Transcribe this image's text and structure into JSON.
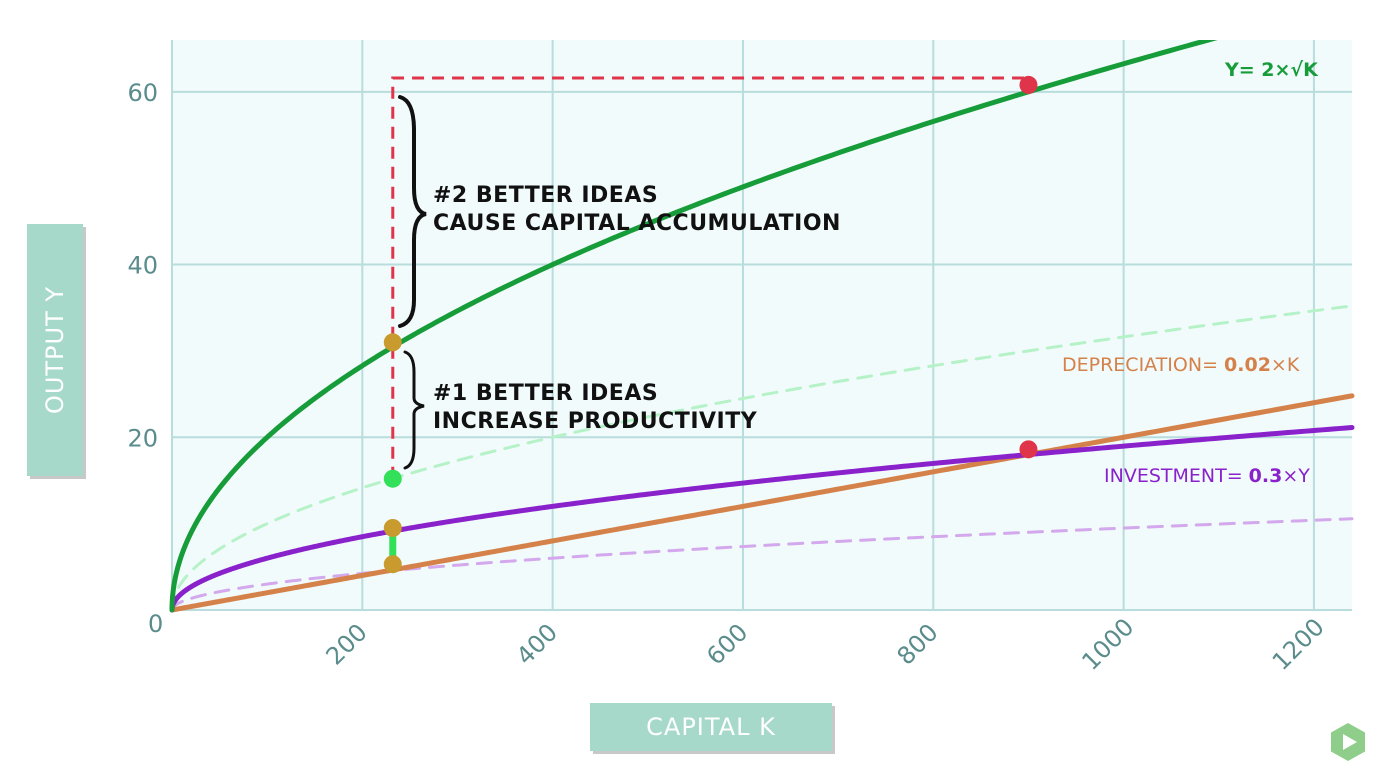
{
  "chart_data": {
    "type": "line",
    "xlabel": "CAPITAL K",
    "ylabel": "OUTPUT Y",
    "xlim": [
      0,
      1240
    ],
    "ylim": [
      0,
      66
    ],
    "x_ticks": [
      "0",
      "200",
      "400",
      "600",
      "800",
      "1000",
      "1200"
    ],
    "y_ticks": [
      "20",
      "40",
      "60"
    ],
    "grid": true,
    "colors": {
      "output": "#179c3a",
      "output_old": "#b6f2c8",
      "investment": "#8a22cc",
      "investment_old": "#d3a8ec",
      "depreciation": "#d5814a",
      "marker_gold": "#c99a2e",
      "marker_red": "#e0344a",
      "marker_green": "#33e05a",
      "guide": "#e0344a",
      "background": "#f1fbfb",
      "grid": "#b9dcdc"
    },
    "series": [
      {
        "name": "Y= 2×√K",
        "key": "output",
        "coef": 2,
        "form": "sqrt",
        "style": "solid"
      },
      {
        "key": "output_old",
        "coef": 1,
        "form": "sqrt",
        "style": "dashed"
      },
      {
        "name": "INVESTMENT= 0.3×Y",
        "key": "investment",
        "coef": 0.6,
        "form": "sqrt",
        "style": "solid"
      },
      {
        "key": "investment_old",
        "coef": 0.3,
        "form": "sqrt",
        "style": "dashed"
      },
      {
        "name": "DEPRECIATION= 0.02×K",
        "key": "depreciation",
        "coef": 0.02,
        "form": "linear",
        "style": "solid"
      }
    ],
    "points": [
      {
        "x": 232,
        "y": 15.2,
        "color": "marker_green"
      },
      {
        "x": 232,
        "y": 31.0,
        "color": "marker_gold"
      },
      {
        "x": 232,
        "y": 9.5,
        "color": "marker_gold"
      },
      {
        "x": 232,
        "y": 5.3,
        "color": "marker_gold"
      },
      {
        "x": 900,
        "y": 60.8,
        "color": "marker_red"
      },
      {
        "x": 900,
        "y": 18.6,
        "color": "marker_red"
      }
    ],
    "annotations": {
      "eq_output": "Y= 2×√K",
      "eq_depreciation_label": "DEPRECIATION= ",
      "eq_depreciation_value": "0.02",
      "eq_depreciation_var": "×K",
      "eq_investment_label": "INVESTMENT= ",
      "eq_investment_value": "0.3",
      "eq_investment_var": "×Y",
      "idea1_line1": "#1 BETTER IDEAS",
      "idea1_line2": "INCREASE PRODUCTIVITY",
      "idea2_line1": "#2 BETTER IDEAS",
      "idea2_line2": "CAUSE CAPITAL ACCUMULATION"
    }
  },
  "controls": {
    "play_icon": "play-icon"
  }
}
